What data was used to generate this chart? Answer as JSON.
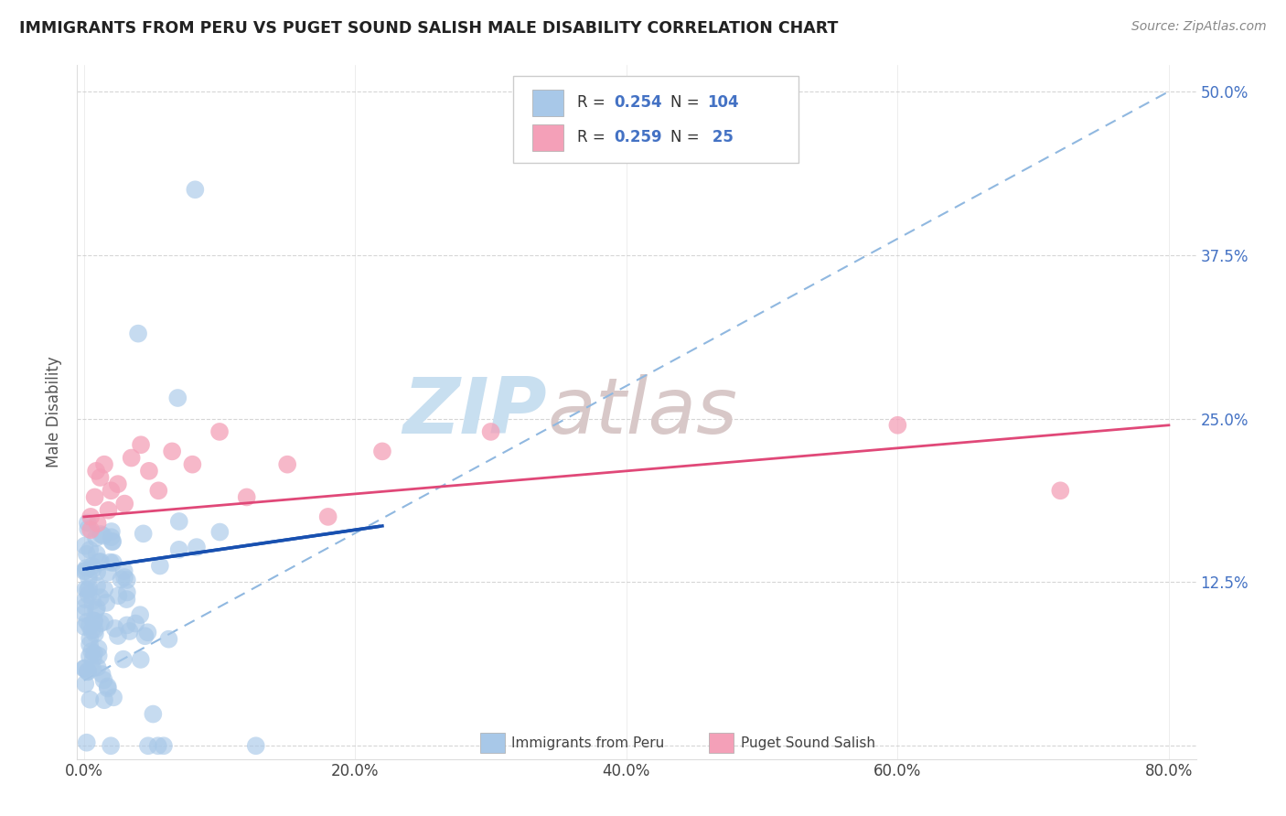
{
  "title": "IMMIGRANTS FROM PERU VS PUGET SOUND SALISH MALE DISABILITY CORRELATION CHART",
  "source": "Source: ZipAtlas.com",
  "ylabel": "Male Disability",
  "legend_label_1": "Immigrants from Peru",
  "legend_label_2": "Puget Sound Salish",
  "R1": 0.254,
  "N1": 104,
  "R2": 0.259,
  "N2": 25,
  "xlim": [
    -0.005,
    0.82
  ],
  "ylim": [
    -0.01,
    0.52
  ],
  "xticks": [
    0.0,
    0.2,
    0.4,
    0.6,
    0.8
  ],
  "yticks": [
    0.0,
    0.125,
    0.25,
    0.375,
    0.5
  ],
  "xticklabels": [
    "0.0%",
    "20.0%",
    "40.0%",
    "60.0%",
    "80.0%"
  ],
  "yticklabels": [
    "",
    "12.5%",
    "25.0%",
    "37.5%",
    "50.0%"
  ],
  "color_blue": "#a8c8e8",
  "color_pink": "#f4a0b8",
  "line_blue": "#1850b0",
  "line_pink": "#e04878",
  "line_dashed_color": "#90b8e0",
  "background": "#ffffff",
  "grid_color": "#cccccc",
  "seed": 99,
  "blue_line_x0": 0.0,
  "blue_line_y0": 0.135,
  "blue_line_x1": 0.22,
  "blue_line_y1": 0.168,
  "pink_line_x0": 0.0,
  "pink_line_y0": 0.175,
  "pink_line_x1": 0.8,
  "pink_line_y1": 0.245,
  "dashed_line_x0": 0.0,
  "dashed_line_y0": 0.05,
  "dashed_line_x1": 0.8,
  "dashed_line_y1": 0.5,
  "watermark": "ZIPatlas",
  "watermark_zip_color": "#c8dff0",
  "watermark_atlas_color": "#d8c8c8"
}
